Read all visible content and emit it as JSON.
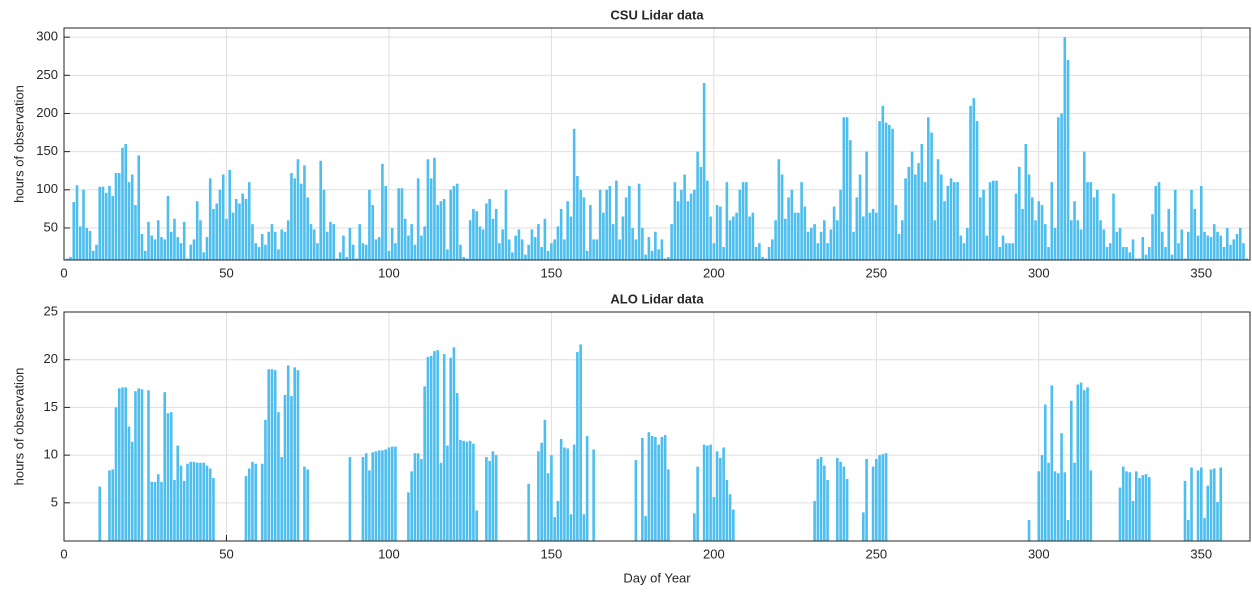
{
  "chart_data": [
    {
      "type": "bar",
      "title": "CSU Lidar data",
      "ylabel": "hours of observation",
      "color": "#4dbeee",
      "grid": true,
      "xlim": [
        0,
        365
      ],
      "xticks": [
        0,
        50,
        100,
        150,
        200,
        250,
        300,
        350
      ],
      "ylim": [
        8,
        312
      ],
      "yticks": [
        50,
        100,
        150,
        200,
        250,
        300
      ],
      "x": [
        1,
        2,
        3,
        4,
        5,
        6,
        7,
        8,
        9,
        10,
        11,
        12,
        13,
        14,
        15,
        16,
        17,
        18,
        19,
        20,
        21,
        22,
        23,
        24,
        25,
        26,
        27,
        28,
        29,
        30,
        31,
        32,
        33,
        34,
        35,
        36,
        37,
        38,
        39,
        40,
        41,
        42,
        43,
        44,
        45,
        46,
        47,
        48,
        49,
        50,
        51,
        52,
        53,
        54,
        55,
        56,
        57,
        58,
        59,
        60,
        61,
        62,
        63,
        64,
        65,
        66,
        67,
        68,
        69,
        70,
        71,
        72,
        73,
        74,
        75,
        76,
        77,
        78,
        79,
        80,
        81,
        82,
        83,
        84,
        85,
        86,
        87,
        88,
        89,
        90,
        91,
        92,
        93,
        94,
        95,
        96,
        97,
        98,
        99,
        100,
        101,
        102,
        103,
        104,
        105,
        106,
        107,
        108,
        109,
        110,
        111,
        112,
        113,
        114,
        115,
        116,
        117,
        118,
        119,
        120,
        121,
        122,
        123,
        124,
        125,
        126,
        127,
        128,
        129,
        130,
        131,
        132,
        133,
        134,
        135,
        136,
        137,
        138,
        139,
        140,
        141,
        142,
        143,
        144,
        145,
        146,
        147,
        148,
        149,
        150,
        151,
        152,
        153,
        154,
        155,
        156,
        157,
        158,
        159,
        160,
        161,
        162,
        163,
        164,
        165,
        166,
        167,
        168,
        169,
        170,
        171,
        172,
        173,
        174,
        175,
        176,
        177,
        178,
        179,
        180,
        181,
        182,
        183,
        184,
        185,
        186,
        187,
        188,
        189,
        190,
        191,
        192,
        193,
        194,
        195,
        196,
        197,
        198,
        199,
        200,
        201,
        202,
        203,
        204,
        205,
        206,
        207,
        208,
        209,
        210,
        211,
        212,
        213,
        214,
        215,
        216,
        217,
        218,
        219,
        220,
        221,
        222,
        223,
        224,
        225,
        226,
        227,
        228,
        229,
        230,
        231,
        232,
        233,
        234,
        235,
        236,
        237,
        238,
        239,
        240,
        241,
        242,
        243,
        244,
        245,
        246,
        247,
        248,
        249,
        250,
        251,
        252,
        253,
        254,
        255,
        256,
        257,
        258,
        259,
        260,
        261,
        262,
        263,
        264,
        265,
        266,
        267,
        268,
        269,
        270,
        271,
        272,
        273,
        274,
        275,
        276,
        277,
        278,
        279,
        280,
        281,
        282,
        283,
        284,
        285,
        286,
        287,
        288,
        289,
        290,
        291,
        292,
        293,
        294,
        295,
        296,
        297,
        298,
        299,
        300,
        301,
        302,
        303,
        304,
        305,
        306,
        307,
        308,
        309,
        310,
        311,
        312,
        313,
        314,
        315,
        316,
        317,
        318,
        319,
        320,
        321,
        322,
        323,
        324,
        325,
        326,
        327,
        328,
        329,
        330,
        331,
        332,
        333,
        334,
        335,
        336,
        337,
        338,
        339,
        340,
        341,
        342,
        343,
        344,
        345,
        346,
        347,
        348,
        349,
        350,
        351,
        352,
        353,
        354,
        355,
        356,
        357,
        358,
        359,
        360,
        361,
        362,
        363,
        364
      ],
      "values": [
        10,
        12,
        84,
        106,
        52,
        100,
        50,
        46,
        20,
        28,
        104,
        104,
        96,
        105,
        92,
        122,
        122,
        155,
        160,
        110,
        120,
        80,
        145,
        42,
        20,
        58,
        40,
        35,
        60,
        38,
        35,
        92,
        45,
        62,
        38,
        30,
        58,
        10,
        28,
        35,
        85,
        60,
        18,
        38,
        115,
        75,
        82,
        100,
        120,
        62,
        126,
        70,
        88,
        82,
        95,
        88,
        110,
        55,
        30,
        25,
        42,
        28,
        45,
        55,
        45,
        22,
        48,
        45,
        60,
        122,
        115,
        140,
        108,
        132,
        90,
        55,
        48,
        30,
        138,
        100,
        45,
        58,
        55,
        10,
        18,
        40,
        12,
        50,
        28,
        10,
        55,
        30,
        28,
        100,
        80,
        35,
        38,
        134,
        105,
        20,
        50,
        30,
        102,
        102,
        62,
        40,
        55,
        28,
        115,
        40,
        52,
        140,
        115,
        142,
        80,
        85,
        88,
        22,
        100,
        105,
        108,
        28,
        12,
        10,
        60,
        75,
        72,
        52,
        48,
        82,
        88,
        62,
        75,
        30,
        48,
        100,
        35,
        18,
        40,
        48,
        35,
        15,
        28,
        48,
        38,
        55,
        25,
        62,
        20,
        30,
        35,
        52,
        75,
        35,
        85,
        65,
        180,
        118,
        100,
        90,
        20,
        80,
        35,
        35,
        100,
        70,
        100,
        105,
        55,
        112,
        35,
        65,
        90,
        105,
        50,
        35,
        108,
        50,
        15,
        38,
        20,
        45,
        22,
        35,
        10,
        12,
        55,
        110,
        85,
        100,
        120,
        85,
        95,
        100,
        150,
        130,
        240,
        112,
        65,
        30,
        80,
        78,
        25,
        110,
        60,
        65,
        70,
        100,
        110,
        110,
        65,
        70,
        25,
        30,
        12,
        10,
        25,
        35,
        60,
        140,
        120,
        62,
        90,
        100,
        70,
        70,
        110,
        78,
        45,
        50,
        55,
        30,
        45,
        60,
        30,
        48,
        78,
        60,
        100,
        195,
        195,
        165,
        45,
        90,
        120,
        65,
        150,
        70,
        75,
        70,
        190,
        210,
        188,
        185,
        180,
        80,
        42,
        60,
        115,
        130,
        150,
        120,
        135,
        160,
        110,
        195,
        175,
        60,
        140,
        120,
        85,
        105,
        115,
        110,
        110,
        40,
        30,
        50,
        210,
        220,
        190,
        90,
        100,
        40,
        110,
        112,
        112,
        25,
        40,
        30,
        30,
        30,
        95,
        130,
        75,
        160,
        120,
        90,
        60,
        85,
        80,
        55,
        25,
        110,
        50,
        195,
        200,
        300,
        270,
        60,
        85,
        60,
        48,
        150,
        110,
        110,
        90,
        100,
        60,
        48,
        25,
        30,
        95,
        45,
        50,
        25,
        25,
        18,
        35,
        10,
        10,
        38,
        15,
        25,
        68,
        105,
        110,
        45,
        25,
        75,
        15,
        100,
        30,
        48,
        10,
        45,
        100,
        75,
        40,
        105,
        45,
        40,
        38,
        55,
        45,
        40,
        25,
        50,
        28,
        35,
        42,
        50,
        30,
        10
      ]
    },
    {
      "type": "bar",
      "title": "ALO Lidar data",
      "ylabel": "hours of observation",
      "xlabel": "Day of Year",
      "color": "#4dbeee",
      "grid": true,
      "xlim": [
        0,
        365
      ],
      "xticks": [
        0,
        50,
        100,
        150,
        200,
        250,
        300,
        350
      ],
      "ylim": [
        1,
        25
      ],
      "yticks": [
        5,
        10,
        15,
        20,
        25
      ],
      "x": [
        11,
        14,
        15,
        16,
        17,
        18,
        19,
        20,
        21,
        22,
        23,
        24,
        26,
        27,
        28,
        29,
        30,
        31,
        32,
        33,
        34,
        35,
        36,
        37,
        38,
        39,
        40,
        41,
        42,
        43,
        44,
        45,
        46,
        56,
        57,
        58,
        59,
        61,
        62,
        63,
        64,
        65,
        66,
        67,
        68,
        69,
        70,
        71,
        72,
        74,
        75,
        88,
        92,
        93,
        94,
        95,
        96,
        97,
        98,
        99,
        100,
        101,
        102,
        106,
        107,
        108,
        109,
        110,
        111,
        112,
        113,
        114,
        115,
        116,
        117,
        118,
        119,
        120,
        121,
        122,
        123,
        124,
        125,
        126,
        127,
        130,
        131,
        132,
        133,
        143,
        146,
        147,
        148,
        149,
        150,
        151,
        152,
        153,
        154,
        155,
        156,
        157,
        158,
        159,
        160,
        161,
        163,
        176,
        178,
        179,
        180,
        181,
        182,
        183,
        184,
        185,
        186,
        194,
        195,
        197,
        198,
        199,
        200,
        201,
        202,
        203,
        204,
        205,
        206,
        231,
        232,
        233,
        234,
        235,
        238,
        239,
        240,
        241,
        246,
        247,
        249,
        250,
        251,
        252,
        253,
        297,
        300,
        301,
        302,
        303,
        304,
        305,
        306,
        307,
        308,
        309,
        310,
        311,
        312,
        313,
        314,
        315,
        316,
        325,
        326,
        327,
        328,
        329,
        330,
        331,
        332,
        333,
        334,
        345,
        346,
        347,
        349,
        350,
        351,
        352,
        353,
        354,
        355,
        356
      ],
      "values": [
        6.7,
        8.4,
        8.5,
        15,
        17,
        17.1,
        17.1,
        13,
        11.4,
        16.7,
        17,
        16.9,
        16.8,
        7.2,
        7.2,
        8,
        7.2,
        16.6,
        14.4,
        14.5,
        7.4,
        11,
        8.9,
        7.3,
        9.1,
        9.3,
        9.3,
        9.2,
        9.2,
        9.2,
        8.9,
        8.6,
        7.6,
        7.8,
        8.6,
        9.3,
        9.1,
        9.1,
        13.7,
        19,
        19,
        18.9,
        14.5,
        9.8,
        16.3,
        19.4,
        16.2,
        19.2,
        18.9,
        8.8,
        8.5,
        9.8,
        9.8,
        10.2,
        8.4,
        10.3,
        10.4,
        10.5,
        10.5,
        10.6,
        10.8,
        10.9,
        10.9,
        6.1,
        8.3,
        10.2,
        10.2,
        9.6,
        17.2,
        20.3,
        20.4,
        20.9,
        21,
        9.2,
        20.6,
        11,
        20.2,
        21.3,
        16.5,
        11.6,
        11.5,
        11.4,
        11.5,
        11.2,
        4.2,
        9.8,
        9.4,
        10.4,
        10,
        7,
        10.4,
        11.3,
        13.7,
        8.1,
        10,
        3.5,
        5.2,
        11.7,
        10.8,
        10.7,
        3.8,
        11.1,
        20.8,
        21.6,
        3.8,
        12,
        10.6,
        9.5,
        11.8,
        3.6,
        12.4,
        12,
        11.9,
        11.1,
        11.9,
        12.1,
        8.5,
        3.9,
        8.8,
        11.1,
        11,
        11.1,
        5.6,
        10.4,
        9.7,
        10.8,
        7.4,
        5.9,
        4.3,
        5.2,
        9.6,
        9.8,
        8.9,
        7.4,
        9.7,
        9.3,
        8.8,
        7.5,
        4,
        9.6,
        8.8,
        9.6,
        10,
        10.1,
        10.2,
        3.2,
        8.3,
        10,
        15.3,
        9.2,
        17.3,
        8.3,
        8.1,
        12.3,
        8.2,
        3.2,
        15.7,
        9.2,
        17.4,
        17.6,
        16.8,
        17.1,
        8.4,
        6.6,
        8.8,
        8.3,
        8.2,
        5.2,
        8.3,
        7.6,
        7.9,
        8,
        7.7,
        7.3,
        3.2,
        8.7,
        8.4,
        8.7,
        3.4,
        6.8,
        8.5,
        8.6,
        5.1,
        8.7
      ]
    }
  ]
}
